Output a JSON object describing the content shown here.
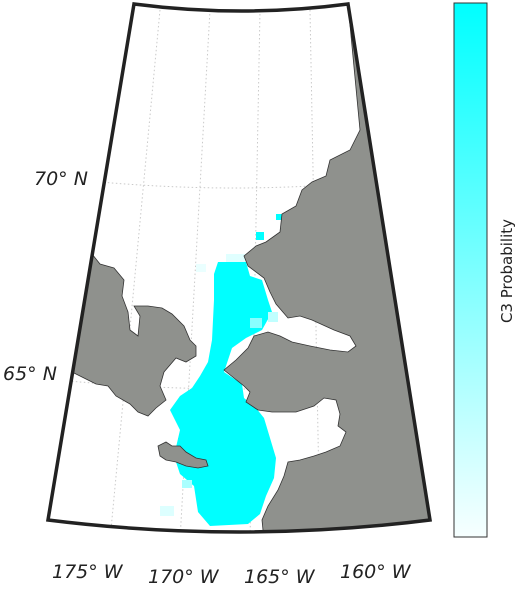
{
  "map": {
    "lat_labels": [
      "70° N",
      "65° N"
    ],
    "lon_labels": [
      "175° W",
      "170° W",
      "165° W",
      "160° W"
    ],
    "land_color": "#8f918d",
    "ocean_color": "#ffffff",
    "frame_color": "#222222",
    "grid_color": "#bfbfbf"
  },
  "colorbar": {
    "label": "C3 Probability",
    "color_high": "#00ffff",
    "color_low": "#f7ffff"
  }
}
